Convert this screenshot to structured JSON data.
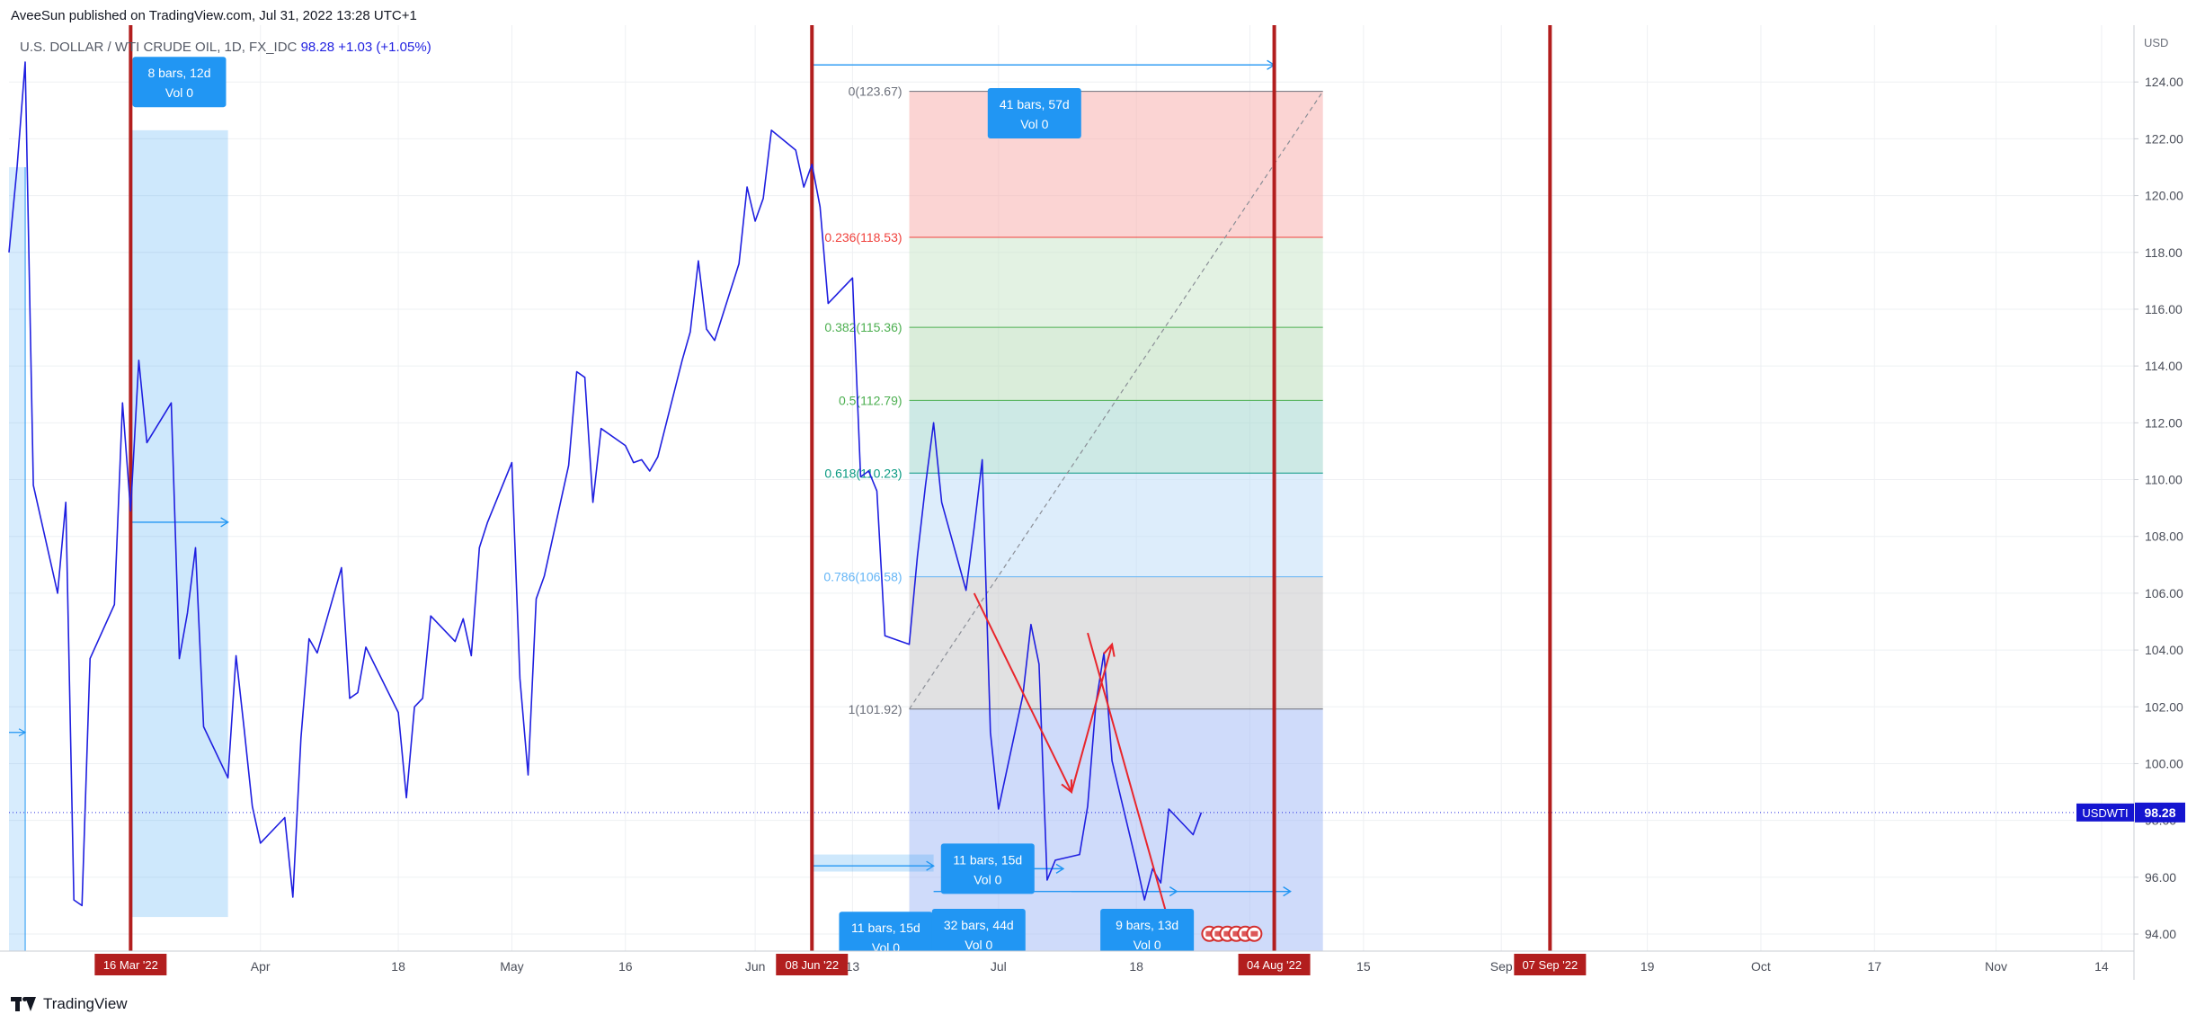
{
  "header": {
    "published_by": "AveeSun published on TradingView.com, Jul 31, 2022 13:28 UTC+1"
  },
  "legend": {
    "symbol": "U.S. DOLLAR / WTI CRUDE OIL, 1D, FX_IDC",
    "last": "98.28",
    "change": "+1.03 (+1.05%)"
  },
  "footer": {
    "brand": "TradingView"
  },
  "colors": {
    "price_line": "#1f1fe0",
    "vline": "#b21e1e",
    "accent_blue": "#2196f3",
    "fib_red": "#f0413c",
    "fib_green": "#4caf50",
    "fib_dark_green": "#089981",
    "fib_light_blue": "#64b5f6"
  },
  "chart_data": {
    "type": "line",
    "title": "U.S. DOLLAR / WTI CRUDE OIL, 1D, FX_IDC",
    "y_unit": "USD",
    "ylim": [
      93.4,
      126.0
    ],
    "y_ticks": [
      94,
      96,
      98,
      100,
      102,
      104,
      106,
      108,
      110,
      112,
      114,
      116,
      118,
      120,
      122,
      124
    ],
    "y_tick_labels": [
      "94.00",
      "96.00",
      "98.00",
      "100.00",
      "102.00",
      "104.00",
      "106.00",
      "108.00",
      "110.00",
      "112.00",
      "114.00",
      "116.00",
      "118.00",
      "120.00",
      "122.00",
      "124.00"
    ],
    "xlim": [
      "2022-03-01",
      "2022-11-18"
    ],
    "x_ticks": [
      {
        "date": "2022-04-01",
        "label": "Apr"
      },
      {
        "date": "2022-04-18",
        "label": "18"
      },
      {
        "date": "2022-05-02",
        "label": "May"
      },
      {
        "date": "2022-05-16",
        "label": "16"
      },
      {
        "date": "2022-06-01",
        "label": "Jun"
      },
      {
        "date": "2022-06-13",
        "label": "13"
      },
      {
        "date": "2022-07-01",
        "label": "Jul"
      },
      {
        "date": "2022-07-18",
        "label": "18"
      },
      {
        "date": "2022-08-01",
        "label": "Aug"
      },
      {
        "date": "2022-08-15",
        "label": "15"
      },
      {
        "date": "2022-09-01",
        "label": "Sep"
      },
      {
        "date": "2022-09-19",
        "label": "19"
      },
      {
        "date": "2022-10-03",
        "label": "Oct"
      },
      {
        "date": "2022-10-17",
        "label": "17"
      },
      {
        "date": "2022-11-01",
        "label": "Nov"
      },
      {
        "date": "2022-11-14",
        "label": "14"
      }
    ],
    "series": [
      {
        "symbol": "USDWTI",
        "last_value": 98.28,
        "last_label": "98.28",
        "points": [
          [
            "2022-03-01",
            118.0
          ],
          [
            "2022-03-02",
            121.0
          ],
          [
            "2022-03-03",
            124.7
          ],
          [
            "2022-03-04",
            109.8
          ],
          [
            "2022-03-07",
            106.0
          ],
          [
            "2022-03-08",
            109.2
          ],
          [
            "2022-03-09",
            95.2
          ],
          [
            "2022-03-10",
            95.0
          ],
          [
            "2022-03-11",
            103.7
          ],
          [
            "2022-03-14",
            105.6
          ],
          [
            "2022-03-15",
            112.7
          ],
          [
            "2022-03-16",
            108.9
          ],
          [
            "2022-03-17",
            114.2
          ],
          [
            "2022-03-18",
            111.3
          ],
          [
            "2022-03-21",
            112.7
          ],
          [
            "2022-03-22",
            103.7
          ],
          [
            "2022-03-23",
            105.3
          ],
          [
            "2022-03-24",
            107.6
          ],
          [
            "2022-03-25",
            101.3
          ],
          [
            "2022-03-28",
            99.5
          ],
          [
            "2022-03-29",
            103.8
          ],
          [
            "2022-03-30",
            101.2
          ],
          [
            "2022-03-31",
            98.5
          ],
          [
            "2022-04-01",
            97.2
          ],
          [
            "2022-04-04",
            98.1
          ],
          [
            "2022-04-05",
            95.3
          ],
          [
            "2022-04-06",
            100.9
          ],
          [
            "2022-04-07",
            104.4
          ],
          [
            "2022-04-08",
            103.9
          ],
          [
            "2022-04-11",
            106.9
          ],
          [
            "2022-04-12",
            102.3
          ],
          [
            "2022-04-13",
            102.5
          ],
          [
            "2022-04-14",
            104.1
          ],
          [
            "2022-04-18",
            101.8
          ],
          [
            "2022-04-19",
            98.8
          ],
          [
            "2022-04-20",
            102.0
          ],
          [
            "2022-04-21",
            102.3
          ],
          [
            "2022-04-22",
            105.2
          ],
          [
            "2022-04-25",
            104.3
          ],
          [
            "2022-04-26",
            105.1
          ],
          [
            "2022-04-27",
            103.8
          ],
          [
            "2022-04-28",
            107.6
          ],
          [
            "2022-04-29",
            108.5
          ],
          [
            "2022-05-02",
            110.6
          ],
          [
            "2022-05-03",
            103.0
          ],
          [
            "2022-05-04",
            99.6
          ],
          [
            "2022-05-05",
            105.8
          ],
          [
            "2022-05-06",
            106.6
          ],
          [
            "2022-05-09",
            110.5
          ],
          [
            "2022-05-10",
            113.8
          ],
          [
            "2022-05-11",
            113.6
          ],
          [
            "2022-05-12",
            109.2
          ],
          [
            "2022-05-13",
            111.8
          ],
          [
            "2022-05-16",
            111.2
          ],
          [
            "2022-05-17",
            110.6
          ],
          [
            "2022-05-18",
            110.7
          ],
          [
            "2022-05-19",
            110.3
          ],
          [
            "2022-05-20",
            110.8
          ],
          [
            "2022-05-23",
            114.2
          ],
          [
            "2022-05-24",
            115.2
          ],
          [
            "2022-05-25",
            117.7
          ],
          [
            "2022-05-26",
            115.3
          ],
          [
            "2022-05-27",
            114.9
          ],
          [
            "2022-05-30",
            117.6
          ],
          [
            "2022-05-31",
            120.3
          ],
          [
            "2022-06-01",
            119.1
          ],
          [
            "2022-06-02",
            119.9
          ],
          [
            "2022-06-03",
            122.3
          ],
          [
            "2022-06-06",
            121.6
          ],
          [
            "2022-06-07",
            120.3
          ],
          [
            "2022-06-08",
            121.1
          ],
          [
            "2022-06-09",
            119.6
          ],
          [
            "2022-06-10",
            116.2
          ],
          [
            "2022-06-13",
            117.1
          ],
          [
            "2022-06-14",
            110.1
          ],
          [
            "2022-06-15",
            110.3
          ],
          [
            "2022-06-16",
            109.6
          ],
          [
            "2022-06-17",
            104.5
          ],
          [
            "2022-06-20",
            104.2
          ],
          [
            "2022-06-21",
            107.3
          ],
          [
            "2022-06-22",
            109.8
          ],
          [
            "2022-06-23",
            112.0
          ],
          [
            "2022-06-24",
            109.2
          ],
          [
            "2022-06-27",
            106.1
          ],
          [
            "2022-06-28",
            108.3
          ],
          [
            "2022-06-29",
            110.7
          ],
          [
            "2022-06-30",
            101.1
          ],
          [
            "2022-07-01",
            98.4
          ],
          [
            "2022-07-04",
            102.4
          ],
          [
            "2022-07-05",
            104.9
          ],
          [
            "2022-07-06",
            103.5
          ],
          [
            "2022-07-07",
            95.9
          ],
          [
            "2022-07-08",
            96.6
          ],
          [
            "2022-07-11",
            96.8
          ],
          [
            "2022-07-12",
            98.5
          ],
          [
            "2022-07-13",
            102.1
          ],
          [
            "2022-07-14",
            103.9
          ],
          [
            "2022-07-15",
            100.1
          ],
          [
            "2022-07-18",
            96.5
          ],
          [
            "2022-07-19",
            95.2
          ],
          [
            "2022-07-20",
            96.3
          ],
          [
            "2022-07-21",
            95.8
          ],
          [
            "2022-07-22",
            98.4
          ],
          [
            "2022-07-25",
            97.5
          ],
          [
            "2022-07-26",
            98.28
          ]
        ]
      }
    ],
    "fibonacci": {
      "levels": [
        {
          "ratio": "0",
          "price": 123.67,
          "label": "0(123.67)"
        },
        {
          "ratio": "0.236",
          "price": 118.53,
          "label": "0.236(118.53)"
        },
        {
          "ratio": "0.382",
          "price": 115.36,
          "label": "0.382(115.36)"
        },
        {
          "ratio": "0.5",
          "price": 112.79,
          "label": "0.5(112.79)"
        },
        {
          "ratio": "0.618",
          "price": 110.23,
          "label": "0.618(110.23)"
        },
        {
          "ratio": "0.786",
          "price": 106.58,
          "label": "0.786(106.58)"
        },
        {
          "ratio": "1",
          "price": 101.92,
          "label": "1(101.92)"
        }
      ],
      "zone_colors": [
        "#f8a9a7",
        "#c7e6c8",
        "#b5dcb6",
        "#9bd4cc",
        "#bcdcf7",
        "#c3c3c6",
        "#9fb8f5"
      ],
      "label_colors": [
        "#6b6f7a",
        "#f0413c",
        "#4caf50",
        "#4caf50",
        "#089981",
        "#64b5f6",
        "#6b6f7a"
      ],
      "start_date": "2022-06-20",
      "end_date": "2022-08-10"
    },
    "vertical_markers": [
      {
        "date": "2022-03-16",
        "label": "16 Mar '22"
      },
      {
        "date": "2022-06-08",
        "label": "08 Jun '22"
      },
      {
        "date": "2022-08-04",
        "label": "04 Aug '22"
      },
      {
        "date": "2022-09-07",
        "label": "07 Sep '22"
      }
    ],
    "date_ranges": [
      {
        "label": "8 bars, 12d",
        "vol": "Vol 0",
        "from": "2022-03-16",
        "to": "2022-03-28",
        "level": 108.5,
        "box_top": 122.3,
        "box_bottom": 94.6,
        "badge_at": 124.0
      },
      {
        "label": "41 bars, 57d",
        "vol": "Vol 0",
        "from": "2022-06-08",
        "to": "2022-08-04",
        "level": 124.6,
        "badge_at": 122.9
      },
      {
        "label": "11 bars, 15d",
        "vol": "Vol 0",
        "from": "2022-06-08",
        "to": "2022-06-23",
        "level": 96.4,
        "box_top": 96.8,
        "box_bottom": 96.2,
        "badge_at": 93.9
      },
      {
        "label": "11 bars, 15d",
        "vol": "Vol 0",
        "from": "2022-06-24",
        "to": "2022-07-09",
        "level": 96.3,
        "badge_at": 96.3
      },
      {
        "label": "32 bars, 44d",
        "vol": "Vol 0",
        "from": "2022-06-23",
        "to": "2022-08-06",
        "level": 95.5,
        "badge_at": 94.0
      },
      {
        "label": "9 bars, 13d",
        "vol": "Vol 0",
        "from": "2022-07-10",
        "to": "2022-07-23",
        "level": 95.5,
        "badge_at": 94.0
      }
    ],
    "price_label": {
      "symbol": "USDWTI",
      "value": "98.28"
    },
    "annotations": {
      "red_lines": [
        {
          "from": [
            "2022-06-28",
            106.0
          ],
          "to": [
            "2022-07-10",
            99.0
          ],
          "arrow": true
        },
        {
          "from": [
            "2022-07-10",
            99.0
          ],
          "to": [
            "2022-07-15",
            104.2
          ],
          "arrow": true
        },
        {
          "from": [
            "2022-07-12",
            104.6
          ],
          "to": [
            "2022-07-23",
            93.4
          ],
          "arrow": false
        }
      ],
      "event_icons": {
        "date_start": "2022-07-27",
        "count": 6,
        "price": 94.2
      }
    },
    "grid": true,
    "legend_position": "top-left"
  }
}
